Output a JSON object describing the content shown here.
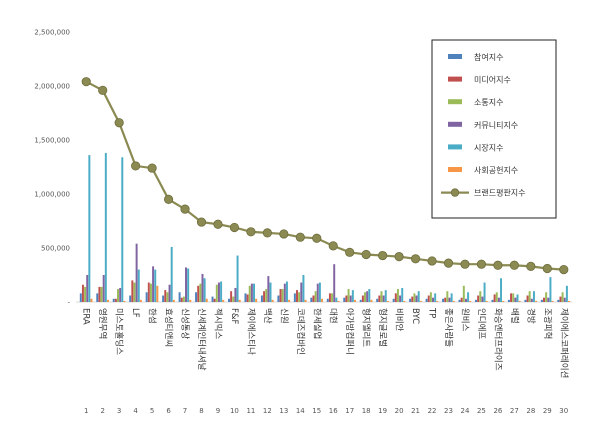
{
  "chart_data": {
    "type": "bar",
    "title": "",
    "xlabel": "",
    "ylabel": "",
    "ylim": [
      0,
      2500000
    ],
    "yticks": [
      "2,500,000",
      "2,000,000",
      "1,500,000",
      "1,000,000",
      "500,000",
      "-"
    ],
    "grid": false,
    "legend_position": "top-right",
    "categories": [
      "ERA",
      "영원무역",
      "미스토홀딩스",
      "LF",
      "한섬",
      "효성티앤씨",
      "신성통상",
      "신세계인터내셔날",
      "젝시믹스",
      "F&F",
      "제이에스티나",
      "백산",
      "신원",
      "코데즈컴바인",
      "한세실업",
      "대현",
      "아가방컴퍼니",
      "형지엘리트",
      "형지글로벌",
      "비비안",
      "BYC",
      "TP",
      "좋은사람들",
      "원비스",
      "인디에프",
      "화승엔터프라이즈",
      "배럴",
      "경방",
      "조광피혁",
      "제이에스코퍼레이션"
    ],
    "numbers": [
      "1",
      "2",
      "3",
      "4",
      "5",
      "6",
      "7",
      "8",
      "9",
      "10",
      "11",
      "12",
      "13",
      "14",
      "15",
      "16",
      "17",
      "18",
      "19",
      "20",
      "21",
      "22",
      "23",
      "24",
      "25",
      "26",
      "27",
      "28",
      "29",
      "30"
    ],
    "series": [
      {
        "name": "참여지수",
        "color": "#4f81bd",
        "kind": "bar",
        "values": [
          80000,
          80000,
          30000,
          60000,
          90000,
          60000,
          90000,
          90000,
          50000,
          30000,
          80000,
          60000,
          60000,
          80000,
          40000,
          30000,
          40000,
          20000,
          30000,
          30000,
          30000,
          30000,
          30000,
          20000,
          20000,
          20000,
          20000,
          20000,
          20000,
          20000
        ]
      },
      {
        "name": "미디어지수",
        "color": "#c0504d",
        "kind": "bar",
        "values": [
          160000,
          140000,
          30000,
          200000,
          180000,
          110000,
          40000,
          150000,
          30000,
          100000,
          70000,
          100000,
          120000,
          110000,
          60000,
          80000,
          60000,
          60000,
          60000,
          80000,
          50000,
          60000,
          40000,
          40000,
          60000,
          70000,
          80000,
          60000,
          40000,
          50000
        ]
      },
      {
        "name": "소통지수",
        "color": "#9bbb59",
        "kind": "bar",
        "values": [
          140000,
          140000,
          120000,
          180000,
          170000,
          90000,
          50000,
          170000,
          160000,
          50000,
          150000,
          120000,
          120000,
          90000,
          100000,
          80000,
          120000,
          90000,
          100000,
          120000,
          80000,
          90000,
          100000,
          150000,
          100000,
          90000,
          80000,
          100000,
          90000,
          90000
        ]
      },
      {
        "name": "커뮤니티지수",
        "color": "#8064a2",
        "kind": "bar",
        "values": [
          250000,
          250000,
          130000,
          540000,
          330000,
          160000,
          320000,
          260000,
          180000,
          130000,
          170000,
          240000,
          170000,
          180000,
          170000,
          350000,
          60000,
          100000,
          60000,
          60000,
          60000,
          40000,
          40000,
          30000,
          50000,
          40000,
          40000,
          30000,
          40000,
          40000
        ]
      },
      {
        "name": "시장지수",
        "color": "#4bacc6",
        "kind": "bar",
        "values": [
          1360000,
          1380000,
          1340000,
          300000,
          300000,
          510000,
          310000,
          220000,
          190000,
          430000,
          170000,
          180000,
          190000,
          250000,
          180000,
          40000,
          110000,
          120000,
          110000,
          130000,
          100000,
          80000,
          80000,
          90000,
          180000,
          220000,
          70000,
          100000,
          230000,
          150000
        ]
      },
      {
        "name": "사회공헌지수",
        "color": "#f79646",
        "kind": "bar",
        "values": [
          30000,
          20000,
          10000,
          20000,
          150000,
          20000,
          20000,
          30000,
          20000,
          20000,
          30000,
          20000,
          20000,
          20000,
          30000,
          10000,
          20000,
          20000,
          10000,
          10000,
          10000,
          10000,
          10000,
          10000,
          10000,
          10000,
          10000,
          10000,
          10000,
          10000
        ]
      },
      {
        "name": "브랜드평판지수",
        "color": "#8b8a52",
        "kind": "line",
        "values": [
          2040000,
          1960000,
          1660000,
          1260000,
          1240000,
          950000,
          860000,
          740000,
          720000,
          690000,
          650000,
          640000,
          630000,
          600000,
          590000,
          520000,
          460000,
          440000,
          430000,
          420000,
          400000,
          380000,
          360000,
          350000,
          350000,
          340000,
          340000,
          330000,
          310000,
          300000
        ]
      }
    ]
  }
}
